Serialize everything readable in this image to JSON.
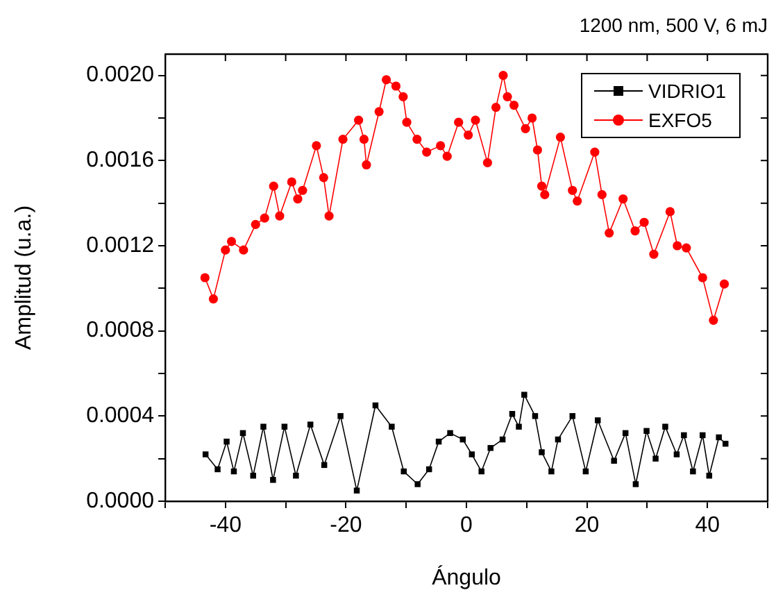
{
  "chart_data": {
    "type": "line",
    "title": "1200 nm, 500 V, 6 mJ",
    "xlabel": "Ángulo",
    "ylabel": "Amplitud (u.a.)",
    "legend": "top right",
    "xlim": [
      -50,
      50
    ],
    "xticks": [
      {
        "value": -50,
        "label": null
      },
      {
        "value": -40,
        "label": "-40"
      },
      {
        "value": -30,
        "label": null
      },
      {
        "value": -20,
        "label": "-20"
      },
      {
        "value": -10,
        "label": null
      },
      0,
      {
        "value": 10,
        "label": null
      },
      20,
      {
        "value": 30,
        "label": null
      },
      40,
      {
        "value": 50,
        "label": null
      }
    ],
    "ylim": [
      0,
      0.0021
    ],
    "yticks": [
      {
        "value": 0,
        "label": "0.0000"
      },
      {
        "value": 0.0002,
        "label": null
      },
      {
        "value": 0.0004,
        "label": "0.0004"
      },
      {
        "value": 0.0006,
        "label": null
      },
      {
        "value": 0.0008,
        "label": "0.0008"
      },
      {
        "value": 0.001,
        "label": null
      },
      {
        "value": 0.0012,
        "label": "0.0012"
      },
      {
        "value": 0.0014,
        "label": null
      },
      {
        "value": 0.0016,
        "label": "0.0016"
      },
      {
        "value": 0.0018,
        "label": null
      },
      {
        "value": 0.002,
        "label": "0.0020"
      }
    ],
    "series": [
      {
        "name": "VIDRIO1",
        "color": "#000000",
        "marker": "square",
        "x": [
          -43.3,
          -41.3,
          -39.8,
          -38.6,
          -37.1,
          -35.4,
          -33.7,
          -32.1,
          -30.2,
          -28.3,
          -25.9,
          -23.6,
          -20.9,
          -18.2,
          -15.1,
          -12.4,
          -10.4,
          -8.1,
          -6.2,
          -4.6,
          -2.7,
          -0.6,
          0.9,
          2.5,
          4.0,
          6.0,
          7.6,
          8.7,
          9.6,
          11.4,
          12.5,
          14.1,
          15.2,
          17.6,
          19.8,
          21.8,
          24.5,
          26.4,
          28.1,
          29.9,
          31.4,
          33,
          34.9,
          36.1,
          37.6,
          39.2,
          40.3,
          41.9,
          43
        ],
        "values": [
          0.00022,
          0.00015,
          0.00028,
          0.00014,
          0.00032,
          0.00012,
          0.00035,
          0.0001,
          0.00035,
          0.00012,
          0.00036,
          0.00017,
          0.0004,
          5e-05,
          0.00045,
          0.00035,
          0.00014,
          8e-05,
          0.00015,
          0.00028,
          0.00032,
          0.00029,
          0.00022,
          0.00014,
          0.00025,
          0.00029,
          0.00041,
          0.00035,
          0.0005,
          0.0004,
          0.00023,
          0.00014,
          0.00029,
          0.0004,
          0.00014,
          0.00038,
          0.00019,
          0.00032,
          8e-05,
          0.00033,
          0.0002,
          0.00035,
          0.00022,
          0.00031,
          0.00014,
          0.00031,
          0.00012,
          0.0003,
          0.00027
        ]
      },
      {
        "name": "EXFO5",
        "color": "#ff0000",
        "marker": "circle",
        "x": [
          -43.4,
          -42,
          -40,
          -39,
          -37,
          -35,
          -33.5,
          -32,
          -31,
          -29,
          -28,
          -27.2,
          -24.9,
          -23.7,
          -22.8,
          -20.5,
          -17.9,
          -17,
          -16.6,
          -14.5,
          -13.3,
          -11.7,
          -10.5,
          -9.9,
          -8.2,
          -6.6,
          -4.3,
          -3.2,
          -1.3,
          0.3,
          1.5,
          3.5,
          4.9,
          6.1,
          6.8,
          7.9,
          9.8,
          10.9,
          11.8,
          12.5,
          13,
          15.6,
          17.6,
          18.4,
          21.3,
          22.5,
          23.7,
          26,
          28,
          29.5,
          31.1,
          33.8,
          35,
          36.5,
          39.2,
          41,
          42.8
        ],
        "values": [
          0.00105,
          0.00095,
          0.00118,
          0.00122,
          0.00118,
          0.0013,
          0.00133,
          0.00148,
          0.00134,
          0.0015,
          0.00142,
          0.00146,
          0.00167,
          0.00152,
          0.00134,
          0.0017,
          0.00179,
          0.0017,
          0.00158,
          0.00183,
          0.00198,
          0.00195,
          0.0019,
          0.00178,
          0.0017,
          0.00164,
          0.00167,
          0.00162,
          0.00178,
          0.00172,
          0.00179,
          0.00159,
          0.00185,
          0.002,
          0.0019,
          0.00186,
          0.00175,
          0.0018,
          0.00165,
          0.00148,
          0.00144,
          0.00171,
          0.00146,
          0.00141,
          0.00164,
          0.00144,
          0.00126,
          0.00142,
          0.00127,
          0.00131,
          0.00116,
          0.00136,
          0.0012,
          0.00119,
          0.00105,
          0.00085,
          0.00102
        ]
      }
    ]
  }
}
